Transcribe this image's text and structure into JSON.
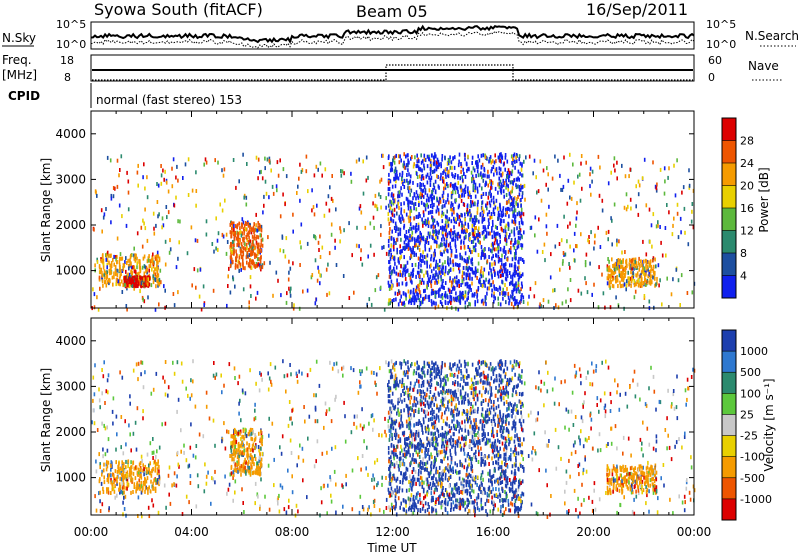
{
  "header": {
    "station": "Syowa South (fitACF)",
    "beam": "Beam 05",
    "date": "16/Sep/2011"
  },
  "noise_panel": {
    "left_label": "N.Sky",
    "left_ticks": [
      "10^5",
      "10^0"
    ],
    "right_label": "N.Search",
    "right_ticks": [
      "10^5",
      "10^0"
    ]
  },
  "freq_panel": {
    "left_label_top": "Freq.",
    "left_label_bottom": "[MHz]",
    "left_ticks": [
      "18",
      "8"
    ],
    "right_label": "Nave",
    "right_ticks": [
      "60",
      "0"
    ]
  },
  "cpid_panel": {
    "label": "CPID",
    "mode_text": "normal (fast stereo) 153"
  },
  "chart_data": [
    {
      "type": "heatmap",
      "title": "",
      "ylabel": "Slant Range [km]",
      "xlabel": "",
      "x_ticks": [
        "00:00",
        "04:00",
        "08:00",
        "12:00",
        "16:00",
        "20:00",
        "00:00"
      ],
      "xlim_hours": [
        0,
        24
      ],
      "y_ticks": [
        1000,
        2000,
        3000,
        4000
      ],
      "ylim": [
        180,
        4500
      ],
      "colorbar": {
        "label": "Power [dB]",
        "tick_labels": [
          "28",
          "24",
          "20",
          "16",
          "12",
          "8",
          "4"
        ],
        "colors": [
          "#dc0000",
          "#ee5500",
          "#f59b00",
          "#e8d000",
          "#5cb83c",
          "#2b8a6e",
          "#1d4fa0",
          "#1020ee"
        ]
      },
      "regions": [
        {
          "name": "morning-near-range",
          "hours": [
            0.3,
            2.7
          ],
          "km": [
            700,
            1400
          ],
          "color": "#f59b00"
        },
        {
          "name": "morning-echo-strong",
          "hours": [
            1.3,
            2.3
          ],
          "km": [
            700,
            900
          ],
          "color": "#dc0000"
        },
        {
          "name": "dawn-band",
          "hours": [
            5.5,
            6.8
          ],
          "km": [
            1100,
            2100
          ],
          "color": "#ee5500"
        },
        {
          "name": "midday-scatter",
          "hours": [
            11.8,
            17.2
          ],
          "km": [
            300,
            3600
          ],
          "color": "#1020ee"
        },
        {
          "name": "evening-near-range",
          "hours": [
            20.5,
            22.5
          ],
          "km": [
            700,
            1300
          ],
          "color": "#f59b00"
        }
      ]
    },
    {
      "type": "heatmap",
      "title": "",
      "ylabel": "Slant Range [km]",
      "xlabel": "Time UT",
      "x_ticks": [
        "00:00",
        "04:00",
        "08:00",
        "12:00",
        "16:00",
        "20:00",
        "00:00"
      ],
      "xlim_hours": [
        0,
        24
      ],
      "y_ticks": [
        1000,
        2000,
        3000,
        4000
      ],
      "ylim": [
        180,
        4500
      ],
      "colorbar": {
        "label": "Velocity [m s⁻¹]",
        "tick_labels": [
          "1000",
          "500",
          "100",
          "25",
          "-25",
          "-100",
          "-500",
          "-1000"
        ],
        "colors": [
          "#1d3fae",
          "#2e78d0",
          "#2b8a6e",
          "#5cc83c",
          "#c8c8c8",
          "#e8d000",
          "#f59b00",
          "#ee5500",
          "#dc0000"
        ]
      },
      "regions": [
        {
          "name": "morning-near-range",
          "hours": [
            0.3,
            2.7
          ],
          "km": [
            700,
            1400
          ],
          "color": "#f59b00"
        },
        {
          "name": "dawn-band",
          "hours": [
            5.5,
            6.8
          ],
          "km": [
            1100,
            2100
          ],
          "color": "#f59b00"
        },
        {
          "name": "midday-scatter",
          "hours": [
            11.8,
            17.2
          ],
          "km": [
            300,
            3600
          ],
          "color": "#1d3fae"
        },
        {
          "name": "evening-near-range",
          "hours": [
            20.5,
            22.5
          ],
          "km": [
            700,
            1300
          ],
          "color": "#f59b00"
        }
      ]
    }
  ]
}
